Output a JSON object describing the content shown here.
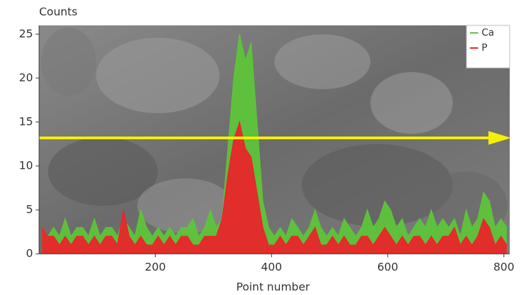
{
  "chart_data": {
    "type": "area",
    "y_label": "Counts",
    "x_label": "Point number",
    "x": [
      5,
      15,
      25,
      35,
      45,
      55,
      65,
      75,
      85,
      95,
      105,
      115,
      125,
      135,
      145,
      155,
      165,
      175,
      185,
      195,
      205,
      215,
      225,
      235,
      245,
      255,
      265,
      275,
      285,
      295,
      305,
      315,
      325,
      335,
      345,
      355,
      365,
      375,
      385,
      395,
      405,
      415,
      425,
      435,
      445,
      455,
      465,
      475,
      485,
      495,
      505,
      515,
      525,
      535,
      545,
      555,
      565,
      575,
      585,
      595,
      605,
      615,
      625,
      635,
      645,
      655,
      665,
      675,
      685,
      695,
      705,
      715,
      725,
      735,
      745,
      755,
      765,
      775,
      785,
      795,
      805
    ],
    "series": [
      {
        "name": "Ca",
        "color": "#5dc43a",
        "values": [
          3,
          2,
          3,
          2,
          4,
          2,
          3,
          3,
          2,
          4,
          2,
          3,
          3,
          2,
          4,
          3,
          2,
          5,
          3,
          2,
          3,
          2,
          3,
          2,
          3,
          3,
          4,
          2,
          3,
          5,
          3,
          4,
          12,
          20,
          25,
          22,
          24,
          15,
          6,
          3,
          2,
          3,
          2,
          4,
          3,
          2,
          3,
          5,
          3,
          2,
          3,
          2,
          4,
          3,
          2,
          3,
          5,
          3,
          4,
          6,
          5,
          3,
          4,
          2,
          3,
          4,
          3,
          5,
          3,
          4,
          3,
          4,
          2,
          5,
          3,
          4,
          7,
          6,
          3,
          4,
          3
        ]
      },
      {
        "name": "P",
        "color": "#e8262a",
        "values": [
          3,
          2,
          2,
          1,
          2,
          1,
          2,
          2,
          1,
          2,
          1,
          2,
          2,
          1,
          5,
          2,
          1,
          2,
          1,
          1,
          2,
          1,
          2,
          1,
          2,
          2,
          1,
          1,
          2,
          2,
          2,
          4,
          9,
          13,
          15,
          12,
          11,
          7,
          3,
          1,
          1,
          2,
          1,
          2,
          2,
          1,
          2,
          3,
          1,
          1,
          2,
          1,
          2,
          1,
          1,
          2,
          2,
          1,
          2,
          3,
          2,
          1,
          2,
          1,
          2,
          2,
          1,
          2,
          1,
          2,
          2,
          3,
          1,
          2,
          1,
          2,
          4,
          3,
          1,
          2,
          1
        ]
      }
    ],
    "xlim": [
      0,
      810
    ],
    "ylim": [
      0,
      26
    ],
    "xticks": [
      200,
      400,
      600,
      800
    ],
    "yticks": [
      0,
      5,
      10,
      15,
      20,
      25
    ]
  }
}
